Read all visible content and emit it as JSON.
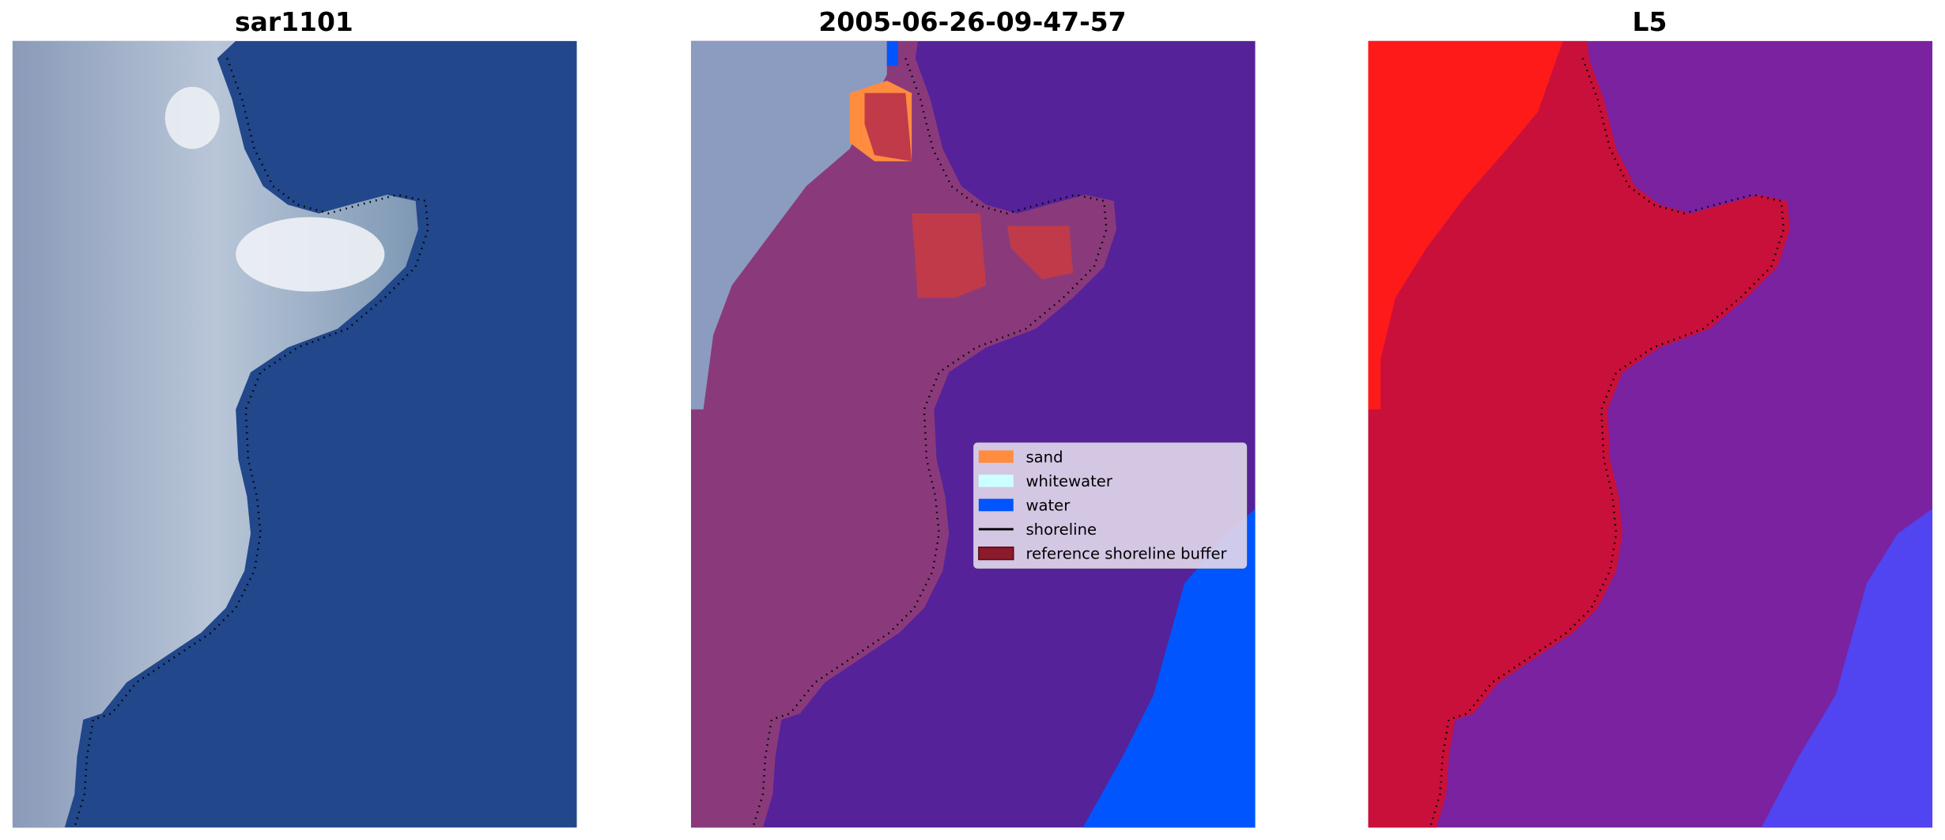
{
  "chart_data": [
    {
      "type": "heatmap",
      "title": "sar1101",
      "content": "RGB satellite image with shoreline overlay"
    },
    {
      "type": "heatmap",
      "title": "2005-06-26-09-47-57",
      "content": "classified image with shoreline overlay",
      "legend": {
        "placement": "center-right",
        "entries": [
          {
            "label": "sand",
            "color": "#ff8c3f",
            "kind": "patch"
          },
          {
            "label": "whitewater",
            "color": "#ccffff",
            "kind": "patch"
          },
          {
            "label": "water",
            "color": "#0055ff",
            "kind": "patch"
          },
          {
            "label": "shoreline",
            "color": "#000000",
            "kind": "line"
          },
          {
            "label": "reference shoreline buffer",
            "color": "#8b1a2b",
            "kind": "patch"
          }
        ]
      }
    },
    {
      "type": "heatmap",
      "title": "L5",
      "content": "probability image with shoreline overlay"
    }
  ],
  "colors": {
    "rgb_water": "#22478a",
    "rgb_land": "#b8c4d6",
    "class_bg": "#55229a",
    "class_buffer": "#8a3a7a",
    "class_water": "#0055ff",
    "prob_bg": "#7a22a0",
    "prob_land": "#c8103a",
    "prob_high": "#ff1a1a",
    "prob_water": "#3f3fff"
  }
}
